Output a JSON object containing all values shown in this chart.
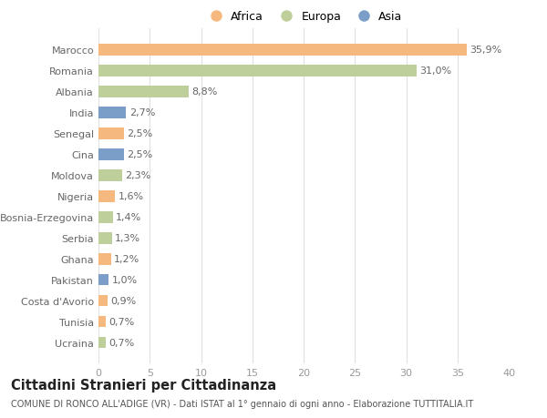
{
  "countries": [
    "Marocco",
    "Romania",
    "Albania",
    "India",
    "Senegal",
    "Cina",
    "Moldova",
    "Nigeria",
    "Bosnia-Erzegovina",
    "Serbia",
    "Ghana",
    "Pakistan",
    "Costa d'Avorio",
    "Tunisia",
    "Ucraina"
  ],
  "values": [
    35.9,
    31.0,
    8.8,
    2.7,
    2.5,
    2.5,
    2.3,
    1.6,
    1.4,
    1.3,
    1.2,
    1.0,
    0.9,
    0.7,
    0.7
  ],
  "labels": [
    "35,9%",
    "31,0%",
    "8,8%",
    "2,7%",
    "2,5%",
    "2,5%",
    "2,3%",
    "1,6%",
    "1,4%",
    "1,3%",
    "1,2%",
    "1,0%",
    "0,9%",
    "0,7%",
    "0,7%"
  ],
  "continents": [
    "Africa",
    "Europa",
    "Europa",
    "Asia",
    "Africa",
    "Asia",
    "Europa",
    "Africa",
    "Europa",
    "Europa",
    "Africa",
    "Asia",
    "Africa",
    "Africa",
    "Europa"
  ],
  "continent_colors": {
    "Africa": "#F5B97F",
    "Europa": "#BFCF9B",
    "Asia": "#7B9EC8"
  },
  "legend_labels": [
    "Africa",
    "Europa",
    "Asia"
  ],
  "legend_colors": [
    "#F5B97F",
    "#BFCF9B",
    "#7B9EC8"
  ],
  "title": "Cittadini Stranieri per Cittadinanza",
  "subtitle": "COMUNE DI RONCO ALL'ADIGE (VR) - Dati ISTAT al 1° gennaio di ogni anno - Elaborazione TUTTITALIA.IT",
  "xlim": [
    0,
    40
  ],
  "xticks": [
    0,
    5,
    10,
    15,
    20,
    25,
    30,
    35,
    40
  ],
  "background_color": "#ffffff",
  "grid_color": "#e0e0e0",
  "bar_height": 0.55,
  "label_fontsize": 8,
  "tick_fontsize": 8,
  "title_fontsize": 10.5,
  "subtitle_fontsize": 7
}
